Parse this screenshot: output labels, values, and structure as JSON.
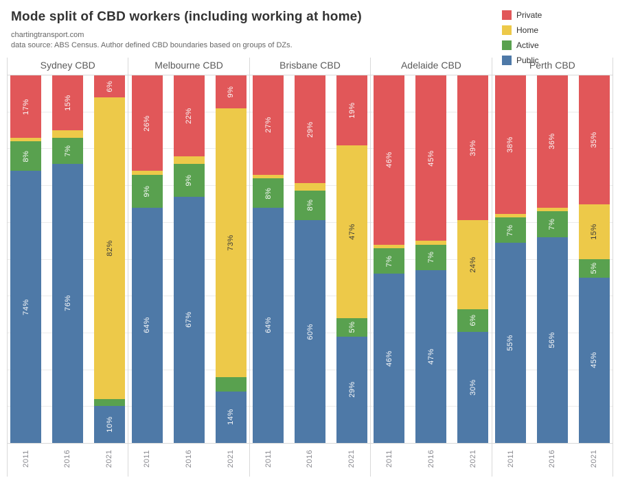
{
  "chart_data": {
    "type": "bar",
    "stacked": true,
    "percent_stacked": true,
    "title": "Mode split of CBD workers (including working at home)",
    "subtitle1": "chartingtransport.com",
    "subtitle2": "data source: ABS Census. Author defined CBD boundaries based on groups of DZs.",
    "ylim": [
      0,
      100
    ],
    "gridline_interval_percent": 10,
    "legend_position": "top-right",
    "legend": [
      {
        "name": "Private",
        "color": "#e15759"
      },
      {
        "name": "Home",
        "color": "#edc949"
      },
      {
        "name": "Active",
        "color": "#59a14f"
      },
      {
        "name": "Public",
        "color": "#4e79a7"
      }
    ],
    "colors": {
      "Private": "#e15759",
      "Home": "#edc949",
      "Active": "#59a14f",
      "Public": "#4e79a7"
    },
    "label_text_colors": {
      "Home": "#3b3b3b",
      "default": "#fafafa"
    },
    "segment_order_top_to_bottom": [
      "Private",
      "Home",
      "Active",
      "Public"
    ],
    "years": [
      "2011",
      "2016",
      "2021"
    ],
    "groups": [
      {
        "city": "Sydney CBD",
        "bars": [
          {
            "year": "2011",
            "segments": [
              {
                "name": "Private",
                "value": 17,
                "label": "17%"
              },
              {
                "name": "Home",
                "value": 1,
                "label": ""
              },
              {
                "name": "Active",
                "value": 8,
                "label": "8%"
              },
              {
                "name": "Public",
                "value": 74,
                "label": "74%"
              }
            ]
          },
          {
            "year": "2016",
            "segments": [
              {
                "name": "Private",
                "value": 15,
                "label": "15%"
              },
              {
                "name": "Home",
                "value": 2,
                "label": ""
              },
              {
                "name": "Active",
                "value": 7,
                "label": "7%"
              },
              {
                "name": "Public",
                "value": 76,
                "label": "76%"
              }
            ]
          },
          {
            "year": "2021",
            "segments": [
              {
                "name": "Private",
                "value": 6,
                "label": "6%"
              },
              {
                "name": "Home",
                "value": 82,
                "label": "82%"
              },
              {
                "name": "Active",
                "value": 2,
                "label": ""
              },
              {
                "name": "Public",
                "value": 10,
                "label": "10%"
              }
            ]
          }
        ]
      },
      {
        "city": "Melbourne CBD",
        "bars": [
          {
            "year": "2011",
            "segments": [
              {
                "name": "Private",
                "value": 26,
                "label": "26%"
              },
              {
                "name": "Home",
                "value": 1,
                "label": ""
              },
              {
                "name": "Active",
                "value": 9,
                "label": "9%"
              },
              {
                "name": "Public",
                "value": 64,
                "label": "64%"
              }
            ]
          },
          {
            "year": "2016",
            "segments": [
              {
                "name": "Private",
                "value": 22,
                "label": "22%"
              },
              {
                "name": "Home",
                "value": 2,
                "label": ""
              },
              {
                "name": "Active",
                "value": 9,
                "label": "9%"
              },
              {
                "name": "Public",
                "value": 67,
                "label": "67%"
              }
            ]
          },
          {
            "year": "2021",
            "segments": [
              {
                "name": "Private",
                "value": 9,
                "label": "9%"
              },
              {
                "name": "Home",
                "value": 73,
                "label": "73%"
              },
              {
                "name": "Active",
                "value": 4,
                "label": ""
              },
              {
                "name": "Public",
                "value": 14,
                "label": "14%"
              }
            ]
          }
        ]
      },
      {
        "city": "Brisbane CBD",
        "bars": [
          {
            "year": "2011",
            "segments": [
              {
                "name": "Private",
                "value": 27,
                "label": "27%"
              },
              {
                "name": "Home",
                "value": 1,
                "label": ""
              },
              {
                "name": "Active",
                "value": 8,
                "label": "8%"
              },
              {
                "name": "Public",
                "value": 64,
                "label": "64%"
              }
            ]
          },
          {
            "year": "2016",
            "segments": [
              {
                "name": "Private",
                "value": 29,
                "label": "29%"
              },
              {
                "name": "Home",
                "value": 2,
                "label": ""
              },
              {
                "name": "Active",
                "value": 8,
                "label": "8%"
              },
              {
                "name": "Public",
                "value": 60,
                "label": "60%"
              }
            ]
          },
          {
            "year": "2021",
            "segments": [
              {
                "name": "Private",
                "value": 19,
                "label": "19%"
              },
              {
                "name": "Home",
                "value": 47,
                "label": "47%"
              },
              {
                "name": "Active",
                "value": 5,
                "label": "5%"
              },
              {
                "name": "Public",
                "value": 29,
                "label": "29%"
              }
            ]
          }
        ]
      },
      {
        "city": "Adelaide CBD",
        "bars": [
          {
            "year": "2011",
            "segments": [
              {
                "name": "Private",
                "value": 46,
                "label": "46%"
              },
              {
                "name": "Home",
                "value": 1,
                "label": ""
              },
              {
                "name": "Active",
                "value": 7,
                "label": "7%"
              },
              {
                "name": "Public",
                "value": 46,
                "label": "46%"
              }
            ]
          },
          {
            "year": "2016",
            "segments": [
              {
                "name": "Private",
                "value": 45,
                "label": "45%"
              },
              {
                "name": "Home",
                "value": 1,
                "label": ""
              },
              {
                "name": "Active",
                "value": 7,
                "label": "7%"
              },
              {
                "name": "Public",
                "value": 47,
                "label": "47%"
              }
            ]
          },
          {
            "year": "2021",
            "segments": [
              {
                "name": "Private",
                "value": 39,
                "label": "39%"
              },
              {
                "name": "Home",
                "value": 24,
                "label": "24%"
              },
              {
                "name": "Active",
                "value": 6,
                "label": "6%"
              },
              {
                "name": "Public",
                "value": 30,
                "label": "30%"
              }
            ]
          }
        ]
      },
      {
        "city": "Perth CBD",
        "bars": [
          {
            "year": "2011",
            "segments": [
              {
                "name": "Private",
                "value": 38,
                "label": "38%"
              },
              {
                "name": "Home",
                "value": 1,
                "label": ""
              },
              {
                "name": "Active",
                "value": 7,
                "label": "7%"
              },
              {
                "name": "Public",
                "value": 55,
                "label": "55%"
              }
            ]
          },
          {
            "year": "2016",
            "segments": [
              {
                "name": "Private",
                "value": 36,
                "label": "36%"
              },
              {
                "name": "Home",
                "value": 1,
                "label": ""
              },
              {
                "name": "Active",
                "value": 7,
                "label": "7%"
              },
              {
                "name": "Public",
                "value": 56,
                "label": "56%"
              }
            ]
          },
          {
            "year": "2021",
            "segments": [
              {
                "name": "Private",
                "value": 35,
                "label": "35%"
              },
              {
                "name": "Home",
                "value": 15,
                "label": "15%"
              },
              {
                "name": "Active",
                "value": 5,
                "label": "5%"
              },
              {
                "name": "Public",
                "value": 45,
                "label": "45%"
              }
            ]
          }
        ]
      }
    ]
  }
}
